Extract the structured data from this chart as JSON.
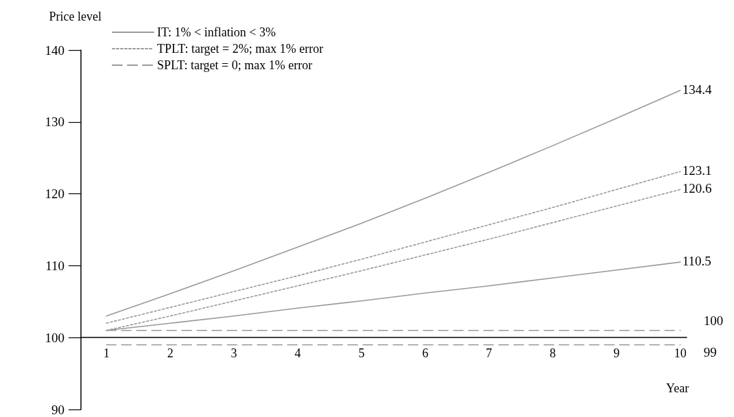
{
  "chart_data": {
    "type": "line",
    "ylabel": "Price level",
    "xlabel": "Year",
    "x": [
      1,
      2,
      3,
      4,
      5,
      6,
      7,
      8,
      9,
      10
    ],
    "xlim": [
      0.6,
      10.1
    ],
    "xticks": [
      1,
      2,
      3,
      4,
      5,
      6,
      7,
      8,
      9,
      10
    ],
    "ylim": [
      90,
      140
    ],
    "yticks": [
      90,
      100,
      110,
      120,
      130,
      140
    ],
    "grid": false,
    "legend": "top left",
    "marker": "none",
    "series": [
      {
        "name": "IT: 1% < inflation < 3%",
        "color": "#999999",
        "line_style": "solid",
        "values": [
          103,
          106.1,
          109.3,
          112.6,
          115.9,
          119.4,
          123.0,
          126.7,
          130.5,
          134.4
        ],
        "value_labels": [
          null,
          null,
          null,
          null,
          null,
          null,
          null,
          null,
          null,
          "134.4"
        ]
      },
      {
        "color": "#999999",
        "line_style": "solid",
        "values": [
          101,
          102,
          103,
          104.1,
          105.1,
          106.2,
          107.2,
          108.3,
          109.4,
          110.5
        ],
        "value_labels": [
          null,
          null,
          null,
          null,
          null,
          null,
          null,
          null,
          null,
          "110.5"
        ]
      },
      {
        "name": "TPLT: target = 2%; max 1% error",
        "color": "#999999",
        "line_style": "dotted",
        "values": [
          102,
          104.2,
          106.4,
          108.6,
          110.9,
          113.3,
          115.7,
          118.1,
          120.6,
          123.1
        ],
        "value_labels": [
          null,
          null,
          null,
          null,
          null,
          null,
          null,
          null,
          null,
          "123.1"
        ]
      },
      {
        "color": "#999999",
        "line_style": "dotted",
        "values": [
          101,
          103.0,
          105.1,
          107.2,
          109.3,
          111.5,
          113.7,
          116.0,
          118.3,
          120.6
        ],
        "value_labels": [
          null,
          null,
          null,
          null,
          null,
          null,
          null,
          null,
          null,
          "120.6"
        ]
      },
      {
        "name": "SPLT: target = 0; max 1% error",
        "color": "#999999",
        "line_style": "dashed",
        "values": [
          101,
          101,
          101,
          101,
          101,
          101,
          101,
          101,
          101,
          101
        ]
      },
      {
        "color": "#999999",
        "line_style": "dashed",
        "values": [
          99,
          99,
          99,
          99,
          99,
          99,
          99,
          99,
          99,
          99
        ]
      }
    ],
    "annotations": [
      {
        "text": "100",
        "x": 10,
        "y": 101
      },
      {
        "text": "99",
        "x": 10,
        "y": 99
      }
    ]
  }
}
